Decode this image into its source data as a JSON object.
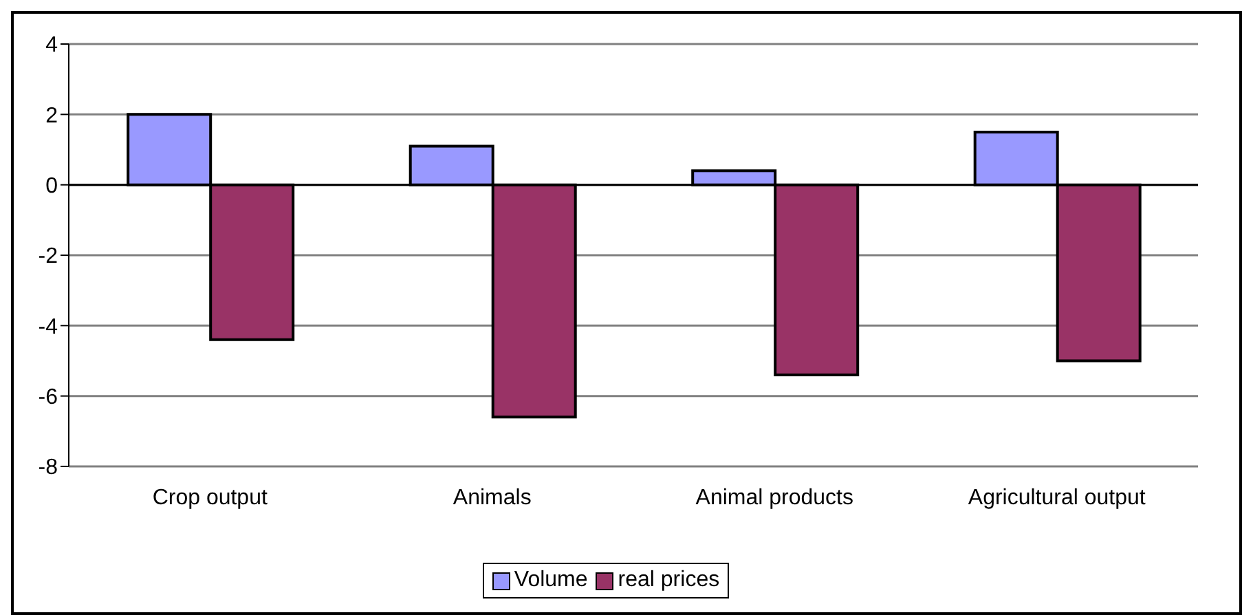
{
  "chart_data": {
    "type": "bar",
    "categories": [
      "Crop output",
      "Animals",
      "Animal products",
      "Agricultural output"
    ],
    "series": [
      {
        "name": "Volume",
        "color": "#9999ff",
        "values": [
          2.0,
          1.1,
          0.4,
          1.5
        ]
      },
      {
        "name": "real prices",
        "color": "#993366",
        "values": [
          -4.4,
          -6.6,
          -5.4,
          -5.0
        ]
      }
    ],
    "ylim": [
      -8,
      4
    ],
    "yticks": [
      -8,
      -6,
      -4,
      -2,
      0,
      2,
      4
    ],
    "grid": "y",
    "legend": "bottom"
  }
}
